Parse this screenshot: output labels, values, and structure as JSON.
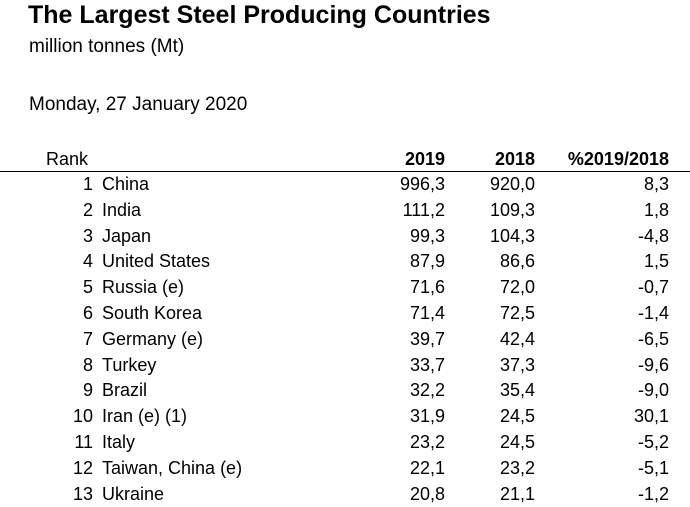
{
  "header": {
    "title": "The Largest Steel Producing Countries",
    "unit": "million tonnes (Mt)",
    "date": "Monday, 27 January 2020"
  },
  "table": {
    "columns": {
      "rank": "Rank",
      "y2019": "2019",
      "y2018": "2018",
      "change": "%2019/2018"
    },
    "rows": [
      {
        "rank": "1",
        "country": "China",
        "y2019": "996,3",
        "y2018": "920,0",
        "change": "8,3"
      },
      {
        "rank": "2",
        "country": "India",
        "y2019": "111,2",
        "y2018": "109,3",
        "change": "1,8"
      },
      {
        "rank": "3",
        "country": "Japan",
        "y2019": "99,3",
        "y2018": "104,3",
        "change": "-4,8"
      },
      {
        "rank": "4",
        "country": "United States",
        "y2019": "87,9",
        "y2018": "86,6",
        "change": "1,5"
      },
      {
        "rank": "5",
        "country": "Russia (e)",
        "y2019": "71,6",
        "y2018": "72,0",
        "change": "-0,7"
      },
      {
        "rank": "6",
        "country": "South Korea",
        "y2019": "71,4",
        "y2018": "72,5",
        "change": "-1,4"
      },
      {
        "rank": "7",
        "country": "Germany (e)",
        "y2019": "39,7",
        "y2018": "42,4",
        "change": "-6,5"
      },
      {
        "rank": "8",
        "country": "Turkey",
        "y2019": "33,7",
        "y2018": "37,3",
        "change": "-9,6"
      },
      {
        "rank": "9",
        "country": "Brazil",
        "y2019": "32,2",
        "y2018": "35,4",
        "change": "-9,0"
      },
      {
        "rank": "10",
        "country": "Iran (e) (1)",
        "y2019": "31,9",
        "y2018": "24,5",
        "change": "30,1"
      },
      {
        "rank": "11",
        "country": "Italy",
        "y2019": "23,2",
        "y2018": "24,5",
        "change": "-5,2"
      },
      {
        "rank": "12",
        "country": "Taiwan, China (e)",
        "y2019": "22,1",
        "y2018": "23,2",
        "change": "-5,1"
      },
      {
        "rank": "13",
        "country": "Ukraine",
        "y2019": "20,8",
        "y2018": "21,1",
        "change": "-1,2"
      }
    ]
  }
}
